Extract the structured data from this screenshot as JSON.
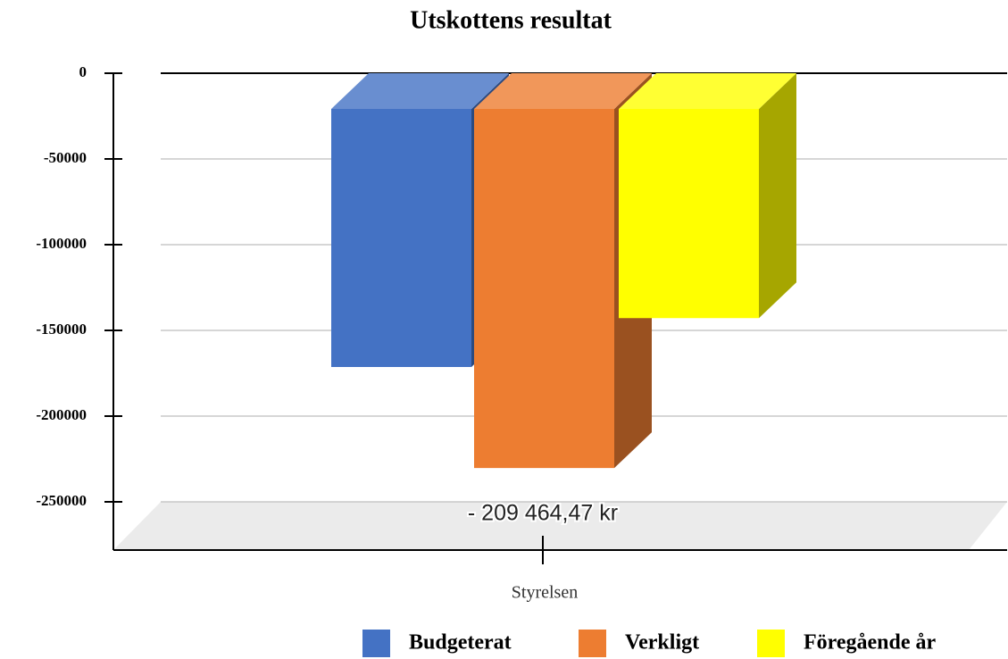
{
  "chart_data": {
    "type": "bar3d",
    "title": "Utskottens resultat",
    "categories": [
      "Styrelsen"
    ],
    "series": [
      {
        "name": "Budgeterat",
        "color": "#4472c4",
        "values": [
          -150500
        ]
      },
      {
        "name": "Verkligt",
        "color": "#ed7d31",
        "values": [
          -209464.47
        ],
        "value_labels": [
          "- 209 464,47 kr"
        ]
      },
      {
        "name": "Föregående år",
        "color": "#ffff00",
        "values": [
          -122000
        ]
      }
    ],
    "ylim": [
      -250000,
      0
    ],
    "yticks": [
      0,
      -50000,
      -100000,
      -150000,
      -200000,
      -250000
    ],
    "grid": true,
    "legend": "bottom"
  }
}
